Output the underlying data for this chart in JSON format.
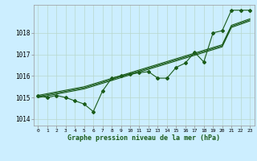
{
  "xlabel": "Graphe pression niveau de la mer (hPa)",
  "background_color": "#cceeff",
  "grid_color": "#b8d8cc",
  "line_color": "#1a5c1a",
  "ylim": [
    1013.7,
    1019.3
  ],
  "xlim": [
    -0.5,
    23.5
  ],
  "yticks": [
    1014,
    1015,
    1016,
    1017,
    1018
  ],
  "xticks": [
    0,
    1,
    2,
    3,
    4,
    5,
    6,
    7,
    8,
    9,
    10,
    11,
    12,
    13,
    14,
    15,
    16,
    17,
    18,
    19,
    20,
    21,
    22,
    23
  ],
  "series_main": [
    1015.1,
    1015.0,
    1015.1,
    1015.0,
    1014.85,
    1014.7,
    1014.35,
    1015.3,
    1015.9,
    1016.0,
    1016.1,
    1016.15,
    1016.2,
    1015.9,
    1015.9,
    1016.4,
    1016.6,
    1017.1,
    1016.65,
    1018.0,
    1018.1,
    1019.05,
    1019.05,
    1019.05
  ],
  "series_r1": [
    1015.0,
    1015.08,
    1015.16,
    1015.24,
    1015.32,
    1015.4,
    1015.53,
    1015.66,
    1015.79,
    1015.92,
    1016.05,
    1016.18,
    1016.31,
    1016.44,
    1016.57,
    1016.7,
    1016.83,
    1016.96,
    1017.09,
    1017.22,
    1017.35,
    1018.25,
    1018.4,
    1018.55
  ],
  "series_r2": [
    1015.05,
    1015.13,
    1015.21,
    1015.29,
    1015.37,
    1015.45,
    1015.58,
    1015.71,
    1015.84,
    1015.97,
    1016.1,
    1016.23,
    1016.36,
    1016.49,
    1016.62,
    1016.75,
    1016.88,
    1017.01,
    1017.14,
    1017.27,
    1017.4,
    1018.3,
    1018.45,
    1018.6
  ],
  "series_r3": [
    1015.1,
    1015.18,
    1015.26,
    1015.34,
    1015.42,
    1015.5,
    1015.63,
    1015.76,
    1015.89,
    1016.02,
    1016.15,
    1016.28,
    1016.41,
    1016.54,
    1016.67,
    1016.8,
    1016.93,
    1017.06,
    1017.19,
    1017.32,
    1017.45,
    1018.35,
    1018.5,
    1018.65
  ]
}
